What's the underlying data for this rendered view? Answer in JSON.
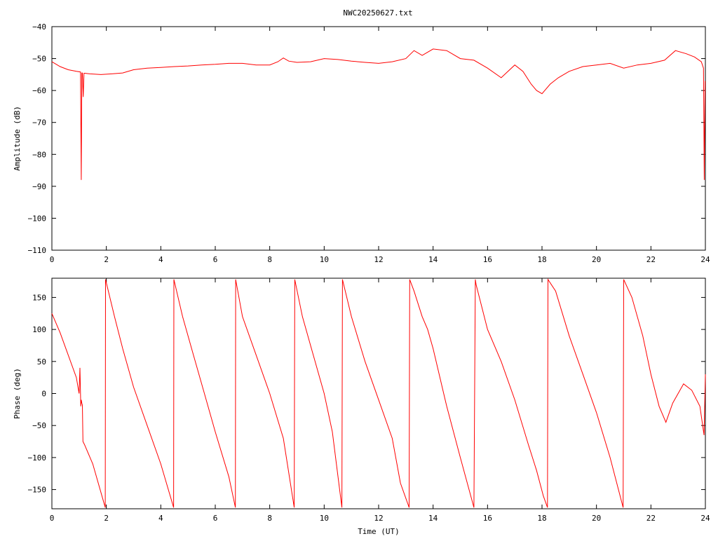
{
  "title": "NWC20250627.txt",
  "chart_data": [
    {
      "type": "line",
      "ylabel": "Amplitude (dB)",
      "xlabel": "",
      "xlim": [
        0,
        24
      ],
      "ylim": [
        -110,
        -40
      ],
      "xticks": [
        0,
        2,
        4,
        6,
        8,
        10,
        12,
        14,
        16,
        18,
        20,
        22,
        24
      ],
      "yticks": [
        -40,
        -50,
        -60,
        -70,
        -80,
        -90,
        -100,
        -110
      ],
      "grid": false,
      "color": "#ff0000",
      "series": [
        {
          "x": [
            0,
            0.3,
            0.6,
            0.9,
            1.05,
            1.08,
            1.1,
            1.12,
            1.15,
            1.18,
            1.2,
            1.4,
            1.8,
            2.2,
            2.6,
            3.0,
            3.5,
            4.0,
            4.5,
            5.0,
            5.5,
            6.0,
            6.5,
            7.0,
            7.5,
            8.0,
            8.3,
            8.5,
            8.7,
            9.0,
            9.5,
            10.0,
            10.5,
            11.0,
            11.5,
            12.0,
            12.5,
            13.0,
            13.3,
            13.6,
            14.0,
            14.5,
            15.0,
            15.5,
            16.0,
            16.5,
            17.0,
            17.3,
            17.6,
            17.8,
            18.0,
            18.3,
            18.6,
            19.0,
            19.5,
            20.0,
            20.5,
            21.0,
            21.5,
            22.0,
            22.5,
            22.9,
            23.3,
            23.6,
            23.85,
            23.93,
            23.96,
            23.99
          ],
          "y": [
            -51,
            -52.5,
            -53.5,
            -54,
            -54.2,
            -88,
            -54.5,
            -54.5,
            -62,
            -54.6,
            -54.6,
            -54.8,
            -55,
            -54.8,
            -54.5,
            -53.5,
            -53,
            -52.8,
            -52.5,
            -52.3,
            -52,
            -51.8,
            -51.5,
            -51.5,
            -52,
            -52,
            -51,
            -49.8,
            -50.8,
            -51.2,
            -51,
            -50,
            -50.3,
            -50.8,
            -51.2,
            -51.5,
            -51,
            -50,
            -47.5,
            -49,
            -47,
            -47.5,
            -50,
            -50.5,
            -53,
            -56,
            -52,
            -54,
            -58,
            -60,
            -61,
            -58,
            -56,
            -54,
            -52.5,
            -52,
            -51.5,
            -53,
            -52,
            -51.5,
            -50.5,
            -47.5,
            -48.5,
            -49.5,
            -51,
            -53,
            -88,
            -57
          ]
        }
      ]
    },
    {
      "type": "line",
      "ylabel": "Phase (deg)",
      "xlabel": "Time (UT)",
      "xlim": [
        0,
        24
      ],
      "ylim": [
        -180,
        180
      ],
      "xticks": [
        0,
        2,
        4,
        6,
        8,
        10,
        12,
        14,
        16,
        18,
        20,
        22,
        24
      ],
      "yticks": [
        150,
        100,
        50,
        0,
        -50,
        -100,
        -150
      ],
      "grid": false,
      "color": "#ff0000",
      "series": [
        {
          "x": [
            0,
            0.3,
            0.6,
            0.9,
            1.0,
            1.03,
            1.06,
            1.08,
            1.1,
            1.12,
            1.14,
            1.2,
            1.5,
            1.96,
            1.97,
            2.3,
            2.6,
            3.0,
            3.5,
            4.0,
            4.47,
            4.48,
            4.8,
            5.2,
            5.6,
            6.0,
            6.5,
            6.74,
            6.75,
            7.0,
            7.5,
            8.0,
            8.5,
            8.9,
            8.92,
            9.2,
            9.6,
            10.0,
            10.3,
            10.65,
            10.67,
            11.0,
            11.5,
            12.0,
            12.5,
            12.8,
            13.12,
            13.14,
            13.3,
            13.6,
            13.8,
            14.0,
            14.5,
            15.0,
            15.5,
            15.55,
            15.58,
            16.0,
            16.5,
            17.0,
            17.5,
            17.8,
            18.05,
            18.2,
            18.22,
            18.5,
            19.0,
            19.5,
            20.0,
            20.5,
            20.98,
            21.0,
            21.3,
            21.7,
            22.0,
            22.3,
            22.55,
            22.8,
            23.2,
            23.5,
            23.8,
            23.95,
            24.0
          ],
          "y": [
            125,
            95,
            60,
            25,
            0,
            40,
            -20,
            -10,
            -15,
            -18,
            -75,
            -80,
            -110,
            -178,
            178,
            120,
            70,
            10,
            -50,
            -110,
            -178,
            178,
            120,
            60,
            0,
            -60,
            -130,
            -178,
            178,
            120,
            60,
            0,
            -70,
            -178,
            178,
            120,
            60,
            0,
            -60,
            -178,
            178,
            120,
            50,
            -10,
            -70,
            -140,
            -178,
            178,
            160,
            120,
            100,
            70,
            -20,
            -100,
            -178,
            178,
            170,
            100,
            50,
            -10,
            -80,
            -120,
            -160,
            -178,
            178,
            160,
            90,
            30,
            -30,
            -100,
            -178,
            178,
            150,
            90,
            30,
            -20,
            -45,
            -15,
            15,
            5,
            -20,
            -65,
            30
          ]
        }
      ]
    }
  ]
}
